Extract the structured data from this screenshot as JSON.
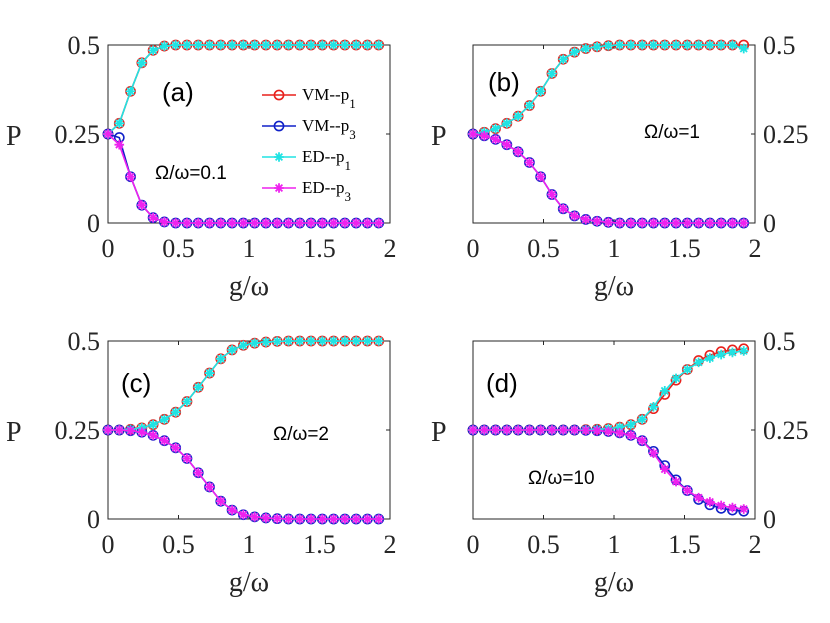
{
  "chart_data": [
    {
      "type": "line",
      "panel_label": "(a)",
      "annotation": "Ω/ω=0.1",
      "ylabel": "P",
      "xlabel": "g/ω",
      "xlim": [
        0,
        2
      ],
      "ylim": [
        0,
        0.5
      ],
      "xticks": [
        "0",
        "0.5",
        "1",
        "1.5",
        "2"
      ],
      "yticks": [
        "0",
        "0.25",
        "0.5"
      ],
      "y_axis_side": "left",
      "legend": [
        "VM--p",
        "VM--p",
        "ED--p",
        "ED--p"
      ],
      "legend_sub": [
        "1",
        "3",
        "1",
        "3"
      ],
      "x": [
        0,
        0.08,
        0.16,
        0.24,
        0.32,
        0.4,
        0.48,
        0.56,
        0.64,
        0.72,
        0.8,
        0.88,
        0.96,
        1.04,
        1.12,
        1.2,
        1.28,
        1.36,
        1.44,
        1.52,
        1.6,
        1.68,
        1.76,
        1.84,
        1.92
      ],
      "series": [
        {
          "name": "VM--p1",
          "values": [
            0.25,
            0.28,
            0.37,
            0.45,
            0.485,
            0.497,
            0.5,
            0.5,
            0.5,
            0.5,
            0.5,
            0.5,
            0.5,
            0.5,
            0.5,
            0.5,
            0.5,
            0.5,
            0.5,
            0.5,
            0.5,
            0.5,
            0.5,
            0.5,
            0.5
          ]
        },
        {
          "name": "VM--p3",
          "values": [
            0.25,
            0.24,
            0.13,
            0.05,
            0.015,
            0.003,
            0,
            0,
            0,
            0,
            0,
            0,
            0,
            0,
            0,
            0,
            0,
            0,
            0,
            0,
            0,
            0,
            0,
            0,
            0
          ]
        },
        {
          "name": "ED--p1",
          "values": [
            0.25,
            0.28,
            0.37,
            0.45,
            0.485,
            0.497,
            0.5,
            0.5,
            0.5,
            0.5,
            0.5,
            0.5,
            0.5,
            0.5,
            0.5,
            0.5,
            0.5,
            0.5,
            0.5,
            0.5,
            0.5,
            0.5,
            0.5,
            0.5,
            0.5
          ]
        },
        {
          "name": "ED--p3",
          "values": [
            0.25,
            0.22,
            0.13,
            0.05,
            0.015,
            0.003,
            0,
            0,
            0,
            0,
            0,
            0,
            0,
            0,
            0,
            0,
            0,
            0,
            0,
            0,
            0,
            0,
            0,
            0,
            0
          ]
        }
      ]
    },
    {
      "type": "line",
      "panel_label": "(b)",
      "annotation": "Ω/ω=1",
      "ylabel": "P",
      "xlabel": "g/ω",
      "xlim": [
        0,
        2
      ],
      "ylim": [
        0,
        0.5
      ],
      "xticks": [
        "0",
        "0.5",
        "1",
        "1.5",
        "2"
      ],
      "yticks": [
        "0",
        "0.25",
        "0.5"
      ],
      "y_axis_side": "right",
      "x": [
        0,
        0.08,
        0.16,
        0.24,
        0.32,
        0.4,
        0.48,
        0.56,
        0.64,
        0.72,
        0.8,
        0.88,
        0.96,
        1.04,
        1.12,
        1.2,
        1.28,
        1.36,
        1.44,
        1.52,
        1.6,
        1.68,
        1.76,
        1.84,
        1.92
      ],
      "series": [
        {
          "name": "VM--p1",
          "values": [
            0.25,
            0.255,
            0.265,
            0.28,
            0.3,
            0.33,
            0.37,
            0.42,
            0.46,
            0.48,
            0.49,
            0.495,
            0.498,
            0.5,
            0.5,
            0.5,
            0.5,
            0.5,
            0.5,
            0.5,
            0.5,
            0.5,
            0.5,
            0.5,
            0.5
          ]
        },
        {
          "name": "VM--p3",
          "values": [
            0.25,
            0.245,
            0.235,
            0.22,
            0.2,
            0.17,
            0.13,
            0.08,
            0.04,
            0.02,
            0.01,
            0.005,
            0.002,
            0,
            0,
            0,
            0,
            0,
            0,
            0,
            0,
            0,
            0,
            0,
            0
          ]
        },
        {
          "name": "ED--p1",
          "values": [
            0.25,
            0.255,
            0.265,
            0.28,
            0.3,
            0.33,
            0.37,
            0.42,
            0.46,
            0.48,
            0.49,
            0.495,
            0.498,
            0.5,
            0.5,
            0.5,
            0.5,
            0.5,
            0.5,
            0.5,
            0.5,
            0.5,
            0.5,
            0.5,
            0.49
          ]
        },
        {
          "name": "ED--p3",
          "values": [
            0.25,
            0.245,
            0.235,
            0.22,
            0.2,
            0.17,
            0.13,
            0.08,
            0.04,
            0.02,
            0.01,
            0.005,
            0.002,
            0,
            0,
            0,
            0,
            0,
            0,
            0,
            0,
            0,
            0,
            0,
            0
          ]
        }
      ]
    },
    {
      "type": "line",
      "panel_label": "(c)",
      "annotation": "Ω/ω=2",
      "ylabel": "P",
      "xlabel": "g/ω",
      "xlim": [
        0,
        2
      ],
      "ylim": [
        0,
        0.5
      ],
      "xticks": [
        "0",
        "0.5",
        "1",
        "1.5",
        "2"
      ],
      "yticks": [
        "0",
        "0.25",
        "0.5"
      ],
      "y_axis_side": "left",
      "x": [
        0,
        0.08,
        0.16,
        0.24,
        0.32,
        0.4,
        0.48,
        0.56,
        0.64,
        0.72,
        0.8,
        0.88,
        0.96,
        1.04,
        1.12,
        1.2,
        1.28,
        1.36,
        1.44,
        1.52,
        1.6,
        1.68,
        1.76,
        1.84,
        1.92
      ],
      "series": [
        {
          "name": "VM--p1",
          "values": [
            0.25,
            0.25,
            0.252,
            0.256,
            0.265,
            0.28,
            0.3,
            0.33,
            0.37,
            0.41,
            0.45,
            0.475,
            0.488,
            0.494,
            0.497,
            0.499,
            0.5,
            0.5,
            0.5,
            0.5,
            0.5,
            0.5,
            0.5,
            0.5,
            0.5
          ]
        },
        {
          "name": "VM--p3",
          "values": [
            0.25,
            0.25,
            0.248,
            0.244,
            0.235,
            0.22,
            0.2,
            0.17,
            0.13,
            0.09,
            0.05,
            0.025,
            0.012,
            0.006,
            0.003,
            0.001,
            0,
            0,
            0,
            0,
            0,
            0,
            0,
            0,
            0
          ]
        },
        {
          "name": "ED--p1",
          "values": [
            0.25,
            0.25,
            0.252,
            0.256,
            0.265,
            0.28,
            0.3,
            0.33,
            0.37,
            0.41,
            0.45,
            0.475,
            0.488,
            0.494,
            0.497,
            0.499,
            0.5,
            0.5,
            0.5,
            0.5,
            0.5,
            0.5,
            0.5,
            0.5,
            0.5
          ]
        },
        {
          "name": "ED--p3",
          "values": [
            0.25,
            0.25,
            0.248,
            0.244,
            0.235,
            0.22,
            0.2,
            0.17,
            0.13,
            0.09,
            0.05,
            0.025,
            0.012,
            0.006,
            0.003,
            0.001,
            0,
            0,
            0,
            0,
            0,
            0,
            0,
            0,
            0
          ]
        }
      ]
    },
    {
      "type": "line",
      "panel_label": "(d)",
      "annotation": "Ω/ω=10",
      "ylabel": "P",
      "xlabel": "g/ω",
      "xlim": [
        0,
        2
      ],
      "ylim": [
        0,
        0.5
      ],
      "xticks": [
        "0",
        "0.5",
        "1",
        "1.5",
        "2"
      ],
      "yticks": [
        "0",
        "0.25",
        "0.5"
      ],
      "y_axis_side": "right",
      "x": [
        0,
        0.08,
        0.16,
        0.24,
        0.32,
        0.4,
        0.48,
        0.56,
        0.64,
        0.72,
        0.8,
        0.88,
        0.96,
        1.04,
        1.12,
        1.2,
        1.28,
        1.36,
        1.44,
        1.52,
        1.6,
        1.68,
        1.76,
        1.84,
        1.92
      ],
      "series": [
        {
          "name": "VM--p1",
          "values": [
            0.25,
            0.25,
            0.25,
            0.25,
            0.25,
            0.25,
            0.25,
            0.25,
            0.25,
            0.25,
            0.251,
            0.252,
            0.254,
            0.258,
            0.265,
            0.28,
            0.31,
            0.35,
            0.39,
            0.42,
            0.445,
            0.46,
            0.47,
            0.475,
            0.478
          ]
        },
        {
          "name": "VM--p3",
          "values": [
            0.25,
            0.25,
            0.25,
            0.25,
            0.25,
            0.25,
            0.25,
            0.25,
            0.25,
            0.25,
            0.249,
            0.248,
            0.246,
            0.242,
            0.235,
            0.22,
            0.19,
            0.15,
            0.11,
            0.08,
            0.055,
            0.04,
            0.03,
            0.025,
            0.022
          ]
        },
        {
          "name": "ED--p1",
          "values": [
            0.25,
            0.25,
            0.25,
            0.25,
            0.25,
            0.25,
            0.25,
            0.25,
            0.25,
            0.25,
            0.251,
            0.252,
            0.254,
            0.258,
            0.265,
            0.28,
            0.315,
            0.36,
            0.395,
            0.42,
            0.44,
            0.452,
            0.462,
            0.468,
            0.472
          ]
        },
        {
          "name": "ED--p3",
          "values": [
            0.25,
            0.25,
            0.25,
            0.25,
            0.25,
            0.25,
            0.25,
            0.25,
            0.25,
            0.25,
            0.249,
            0.248,
            0.246,
            0.242,
            0.235,
            0.22,
            0.185,
            0.14,
            0.105,
            0.08,
            0.06,
            0.048,
            0.038,
            0.032,
            0.028
          ]
        }
      ]
    }
  ],
  "series_styles": [
    {
      "name": "VM--p1",
      "color": "#e8211c",
      "marker": "circle"
    },
    {
      "name": "VM--p3",
      "color": "#1021c8",
      "marker": "circle"
    },
    {
      "name": "ED--p1",
      "color": "#20e3e3",
      "marker": "star"
    },
    {
      "name": "ED--p3",
      "color": "#ee22ee",
      "marker": "star"
    }
  ]
}
